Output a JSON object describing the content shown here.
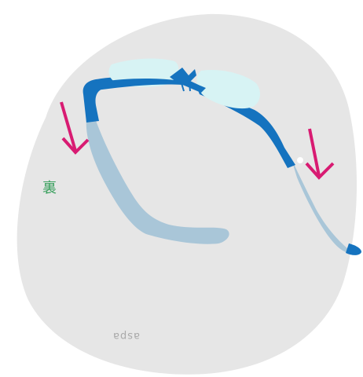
{
  "labels": {
    "back_side": "裏",
    "mirrored_imprint": "aspa"
  },
  "colors": {
    "background_disc": "#e5e5e5",
    "frame_front": "#1573bf",
    "temple_tip": "#a9c6d8",
    "lens": "#d7f3f4",
    "arrow": "#d81b72",
    "label": "#3aa05e"
  },
  "icons": {
    "left_arrow": "down-arrow-icon",
    "right_arrow": "down-arrow-icon",
    "glasses": "eyeglasses-icon"
  }
}
